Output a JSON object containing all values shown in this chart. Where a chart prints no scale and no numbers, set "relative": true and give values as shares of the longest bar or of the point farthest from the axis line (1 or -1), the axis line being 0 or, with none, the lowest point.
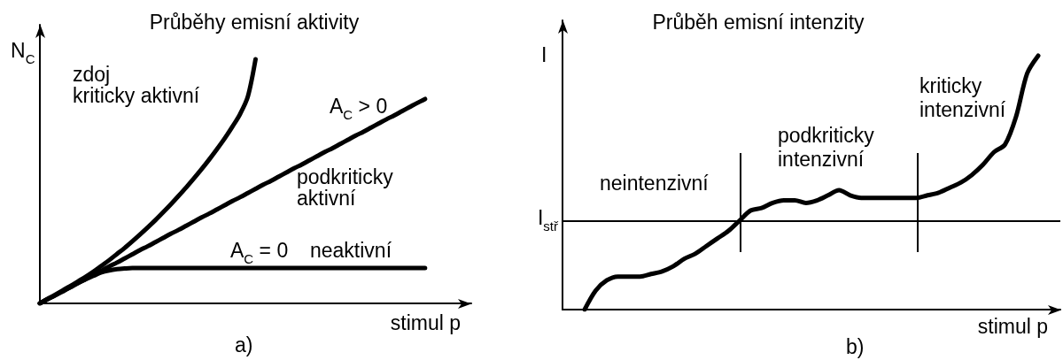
{
  "chart_data": [
    {
      "type": "line",
      "title": "Průběhy emisní aktivity",
      "xlabel": "stimul p",
      "ylabel": "N$_{C}$",
      "relative": true,
      "categories": [
        null,
        null,
        null,
        null,
        null,
        null,
        null,
        null,
        null,
        null,
        null,
        null,
        null,
        null,
        null,
        null,
        null,
        null,
        null,
        null,
        null,
        null,
        null,
        null,
        null,
        null,
        null,
        null,
        null,
        null,
        null,
        null,
        null,
        null,
        null,
        null,
        null,
        null,
        null,
        null,
        null,
        null,
        null,
        null,
        null,
        null,
        null,
        null,
        null,
        null,
        null,
        null,
        null,
        null,
        null,
        null,
        null
      ],
      "series": [
        {
          "name": "zdoj\nkriticky aktivní",
          "color": "#000000",
          "values": [
            0,
            0.018,
            0.036,
            0.054,
            0.072,
            0.091,
            0.11,
            0.131,
            0.154,
            0.177,
            0.202,
            0.227,
            0.254,
            0.282,
            0.311,
            0.341,
            0.373,
            0.406,
            0.44,
            0.475,
            0.512,
            0.55,
            0.59,
            0.632,
            0.676,
            0.724,
            0.776,
            0.847,
            1,
            null,
            null,
            null,
            null,
            null,
            null,
            null,
            null,
            null,
            null,
            null,
            null,
            null,
            null,
            null,
            null,
            null,
            null,
            null,
            null,
            null,
            null,
            null,
            null,
            null,
            null,
            null,
            null
          ]
        },
        {
          "name": "podkriticky\naktivní",
          "color": "#000000",
          "values": [
            0,
            0.017,
            0.033,
            0.05,
            0.067,
            0.084,
            0.1,
            0.117,
            0.134,
            0.151,
            0.167,
            0.184,
            0.201,
            0.218,
            0.234,
            0.251,
            0.268,
            0.285,
            0.301,
            0.318,
            0.335,
            0.352,
            0.368,
            0.385,
            0.402,
            0.419,
            0.435,
            0.452,
            0.469,
            0.486,
            0.502,
            0.519,
            0.536,
            0.553,
            0.569,
            0.586,
            0.603,
            0.62,
            0.636,
            0.653,
            0.67,
            0.687,
            0.703,
            0.72,
            0.737,
            0.754,
            0.77,
            0.787,
            0.804,
            0.821,
            0.837,
            null,
            null,
            null,
            null,
            null,
            null
          ]
        },
        {
          "name": "neaktivní",
          "color": "#000000",
          "values": [
            0,
            0.017,
            0.033,
            0.05,
            0.067,
            0.084,
            0.1,
            0.113,
            0.127,
            0.135,
            0.14,
            0.143,
            0.145,
            0.145,
            0.145,
            0.145,
            0.145,
            0.145,
            0.145,
            0.145,
            0.145,
            0.145,
            0.145,
            0.145,
            0.145,
            0.145,
            0.145,
            0.145,
            0.145,
            0.145,
            0.145,
            0.145,
            0.145,
            0.145,
            0.145,
            0.145,
            0.145,
            0.145,
            0.145,
            0.145,
            0.145,
            0.145,
            0.145,
            0.145,
            0.145,
            0.145,
            0.145,
            0.145,
            0.145,
            0.145,
            0.145,
            null,
            null,
            null,
            null,
            null,
            null
          ]
        }
      ],
      "annotations": [
        "A$_{C}$ > 0",
        "A$_{C}$ = 0",
        "a)"
      ]
    },
    {
      "type": "line",
      "title": "Průběh emisní intenzity",
      "xlabel": "stimul p",
      "ylabel": "I",
      "relative": true,
      "categories": [
        null,
        null,
        null,
        null,
        null,
        null,
        null,
        null,
        null,
        null,
        null,
        null,
        null,
        null,
        null,
        null,
        null,
        null,
        null,
        null,
        null,
        null,
        null,
        null,
        null,
        null,
        null,
        null,
        null,
        null,
        null,
        null,
        null,
        null,
        null,
        null,
        null,
        null,
        null,
        null,
        null,
        null,
        null,
        null,
        null,
        null
      ],
      "color": "#000000",
      "values": [
        null,
        null,
        0,
        0.075,
        0.115,
        0.13,
        0.13,
        0.13,
        0.14,
        0.15,
        0.17,
        0.2,
        0.22,
        0.25,
        0.28,
        0.31,
        0.35,
        0.39,
        0.4,
        0.42,
        0.43,
        0.43,
        0.42,
        0.43,
        0.45,
        0.47,
        0.45,
        0.44,
        0.44,
        0.44,
        0.44,
        0.44,
        0.44,
        0.45,
        0.46,
        0.48,
        0.5,
        0.53,
        0.57,
        0.62,
        0.65,
        0.76,
        0.93,
        1,
        null,
        null
      ],
      "ref_lines": [
        {
          "axis": "y",
          "value": 0.35,
          "label": "I$_{stř}$"
        }
      ],
      "annotations": [
        "neintenzivní",
        "podkriticky\nintenzivní",
        "kriticky\nintenzivní",
        "b)"
      ]
    }
  ]
}
